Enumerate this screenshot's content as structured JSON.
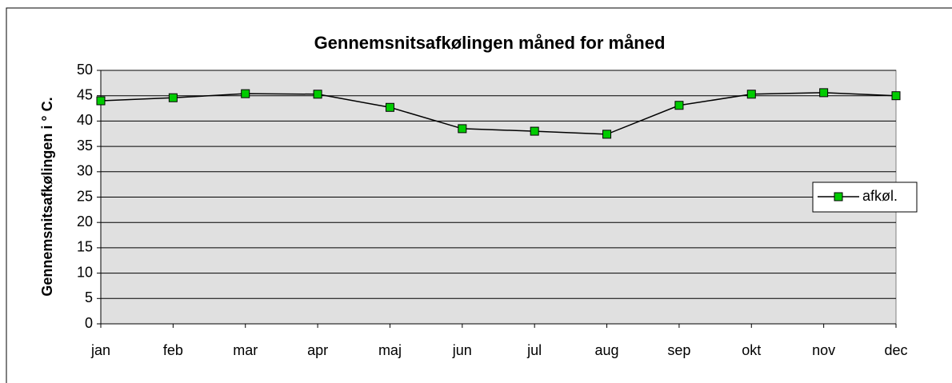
{
  "chart_data": {
    "type": "line",
    "title": "Gennemsnitsafkølingen måned for måned",
    "y_label": "Gennemsnitsafkølingen i ° C.",
    "categories": [
      "jan",
      "feb",
      "mar",
      "apr",
      "maj",
      "jun",
      "jul",
      "aug",
      "sep",
      "okt",
      "nov",
      "dec"
    ],
    "series": [
      {
        "name": "afkøl.",
        "color": "#00cc00",
        "values": [
          44.0,
          44.6,
          45.4,
          45.3,
          42.7,
          38.5,
          38.0,
          37.4,
          43.1,
          45.3,
          45.6,
          45.0
        ]
      }
    ],
    "ylim": [
      0,
      50
    ],
    "yticks": [
      0,
      5,
      10,
      15,
      20,
      25,
      30,
      35,
      40,
      45,
      50
    ],
    "grid": true,
    "legend": "right"
  }
}
